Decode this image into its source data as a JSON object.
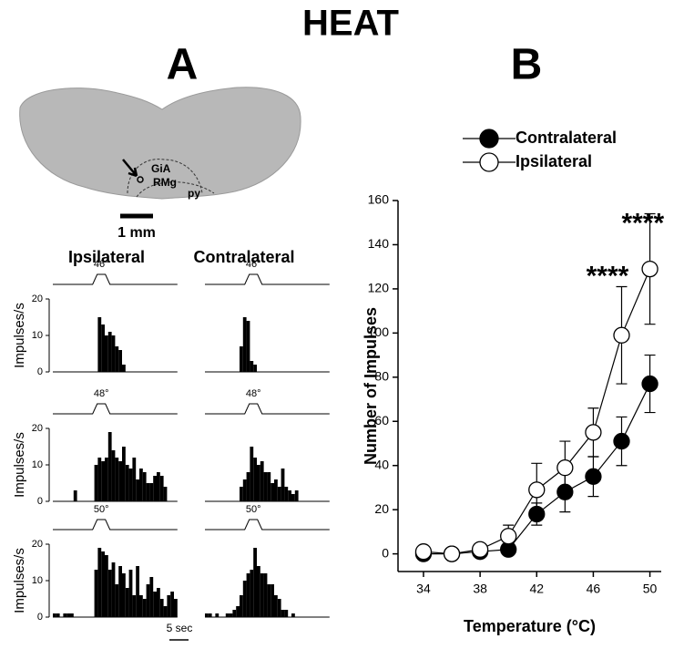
{
  "title": "HEAT",
  "panel_a": {
    "label": "A",
    "columns": [
      "Ipsilateral",
      "Contralateral"
    ],
    "slice_labels": [
      "GiA",
      "RMg",
      "py"
    ],
    "slice_scale": "1 mm",
    "time_scale": "5 sec"
  },
  "panel_b": {
    "label": "B"
  },
  "chart_data": [
    {
      "type": "histogram",
      "stimulus": "46°",
      "ylabel": "Impulses/s",
      "ylim": [
        0,
        20
      ],
      "yticks": [
        0,
        10,
        20
      ],
      "values": [
        0,
        0,
        0,
        0,
        0,
        0,
        0,
        0,
        0,
        0,
        0,
        0,
        0,
        15,
        13,
        10,
        11,
        10,
        7,
        6,
        2,
        0,
        0,
        0,
        0,
        0,
        0,
        0,
        0,
        0,
        0,
        0,
        0,
        0,
        0,
        0
      ]
    },
    {
      "type": "histogram",
      "stimulus": "46°",
      "ylim": [
        0,
        20
      ],
      "values": [
        0,
        0,
        0,
        0,
        0,
        0,
        0,
        0,
        0,
        0,
        7,
        15,
        14,
        3,
        2,
        0,
        0,
        0,
        0,
        0,
        0,
        0,
        0,
        0,
        0,
        0,
        0,
        0,
        0,
        0,
        0,
        0,
        0,
        0,
        0,
        0
      ]
    },
    {
      "type": "histogram",
      "stimulus": "48°",
      "ylabel": "Impulses/s",
      "ylim": [
        0,
        20
      ],
      "yticks": [
        0,
        10,
        20
      ],
      "values": [
        0,
        0,
        0,
        0,
        0,
        0,
        3,
        0,
        0,
        0,
        0,
        0,
        10,
        12,
        11,
        12,
        19,
        14,
        12,
        11,
        15,
        10,
        9,
        12,
        6,
        9,
        8,
        5,
        5,
        7,
        8,
        7,
        4,
        0,
        0,
        0
      ]
    },
    {
      "type": "histogram",
      "stimulus": "48°",
      "ylim": [
        0,
        20
      ],
      "values": [
        0,
        0,
        0,
        0,
        0,
        0,
        0,
        0,
        0,
        0,
        4,
        6,
        8,
        15,
        12,
        10,
        11,
        8,
        8,
        5,
        6,
        4,
        9,
        4,
        3,
        2,
        3,
        0,
        0,
        0,
        0,
        0,
        0,
        0,
        0,
        0
      ]
    },
    {
      "type": "histogram",
      "stimulus": "50°",
      "ylabel": "Impulses/s",
      "ylim": [
        0,
        20
      ],
      "yticks": [
        0,
        10,
        20
      ],
      "values": [
        1,
        1,
        0,
        1,
        1,
        1,
        0,
        0,
        0,
        0,
        0,
        0,
        13,
        19,
        18,
        17,
        13,
        15,
        9,
        14,
        12,
        8,
        13,
        6,
        14,
        6,
        5,
        9,
        11,
        7,
        8,
        5,
        3,
        6,
        7,
        5
      ]
    },
    {
      "type": "histogram",
      "stimulus": "50°",
      "ylim": [
        0,
        20
      ],
      "values": [
        1,
        1,
        0,
        1,
        0,
        0,
        1,
        1,
        2,
        3,
        6,
        10,
        12,
        13,
        19,
        14,
        12,
        12,
        9,
        9,
        6,
        5,
        2,
        2,
        0,
        1,
        0,
        0,
        0,
        0,
        0,
        0,
        0,
        0,
        0,
        0
      ]
    },
    {
      "type": "line",
      "xlabel": "Temperature (°C)",
      "ylabel": "Number of Impulses",
      "x": [
        34,
        36,
        38,
        40,
        42,
        44,
        46,
        48,
        50
      ],
      "xlim": [
        32.2,
        50.8
      ],
      "xticks": [
        34,
        38,
        42,
        46,
        50
      ],
      "ylim": [
        -8,
        160
      ],
      "yticks": [
        0,
        20,
        40,
        60,
        80,
        100,
        120,
        140,
        160
      ],
      "series": [
        {
          "name": "Contralateral",
          "color": "#000000",
          "values": [
            0,
            0,
            1,
            2,
            18,
            28,
            35,
            51,
            77
          ],
          "errors": [
            0,
            0,
            1,
            1,
            5,
            9,
            9,
            11,
            13
          ]
        },
        {
          "name": "Ipsilateral",
          "color": "#ffffff",
          "values": [
            1,
            0,
            2,
            8,
            29,
            39,
            55,
            99,
            129
          ],
          "errors": [
            1,
            1,
            2,
            5,
            12,
            12,
            11,
            22,
            25
          ]
        }
      ],
      "annotations": [
        {
          "text": "****",
          "x": 47,
          "y": 125
        },
        {
          "text": "****",
          "x": 49.5,
          "y": 149
        }
      ]
    }
  ]
}
